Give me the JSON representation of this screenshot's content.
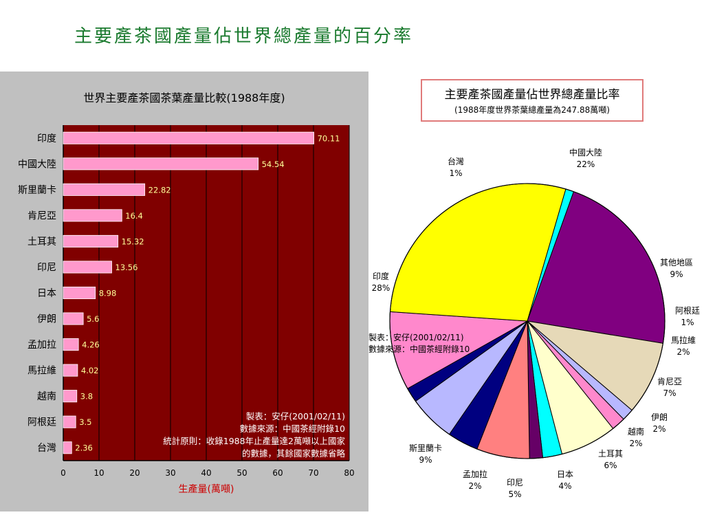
{
  "slide": {
    "title": "主要產茶國產量佔世界總產量的百分率"
  },
  "chart_data": [
    {
      "type": "bar",
      "orientation": "horizontal",
      "title": "世界主要產茶國茶葉產量比較(1988年度)",
      "xlabel": "生產量(萬噸)",
      "xlim": [
        0,
        80
      ],
      "xticks": [
        "0",
        "10",
        "20",
        "30",
        "40",
        "50",
        "60",
        "70",
        "80"
      ],
      "categories": [
        "印度",
        "中國大陸",
        "斯里蘭卡",
        "肯尼亞",
        "土耳其",
        "印尼",
        "日本",
        "伊朗",
        "孟加拉",
        "馬拉維",
        "越南",
        "阿根廷",
        "台灣"
      ],
      "values": [
        70.11,
        54.54,
        22.82,
        16.4,
        15.32,
        13.56,
        8.98,
        5.6,
        4.26,
        4.02,
        3.8,
        3.5,
        2.36
      ],
      "value_labels": [
        "70.11",
        "54.54",
        "22.82",
        "16.4",
        "15.32",
        "13.56",
        "8.98",
        "5.6",
        "4.26",
        "4.02",
        "3.8",
        "3.5",
        "2.36"
      ],
      "grid": "vertical",
      "colors": {
        "plot_bg": "#800000",
        "bar": "#ff99cc",
        "grid": "#000000",
        "value_label": "#ffff99",
        "xlabel": "#cc0000"
      },
      "annotation": [
        "製表：安仔(2001/02/11)",
        "數據來源：中國茶經附錄10",
        "統計原則：收錄1988年止產量達2萬噸以上國家",
        "的數據，其餘國家數據省略"
      ]
    },
    {
      "type": "pie",
      "title": "主要產茶國產量佔世界總產量比率",
      "subtitle": "(1988年度世界茶葉總產量為247.88萬噸)",
      "slices": [
        {
          "name": "中國大陸",
          "label": "22%",
          "value": 22.0,
          "color": "#800080"
        },
        {
          "name": "其他地區",
          "label": "9%",
          "value": 8.6,
          "color": "#e6d9b8"
        },
        {
          "name": "阿根廷",
          "label": "1%",
          "value": 1.41,
          "color": "#b8b8ff"
        },
        {
          "name": "馬拉維",
          "label": "2%",
          "value": 1.62,
          "color": "#ff88cc"
        },
        {
          "name": "肯尼亞",
          "label": "7%",
          "value": 6.62,
          "color": "#ffffcc"
        },
        {
          "name": "伊朗",
          "label": "2%",
          "value": 2.26,
          "color": "#00ffff"
        },
        {
          "name": "越南",
          "label": "2%",
          "value": 1.53,
          "color": "#660066"
        },
        {
          "name": "土耳其",
          "label": "6%",
          "value": 6.18,
          "color": "#ff8080"
        },
        {
          "name": "日本",
          "label": "4%",
          "value": 3.62,
          "color": "#000080"
        },
        {
          "name": "印尼",
          "label": "5%",
          "value": 5.47,
          "color": "#b8b8ff"
        },
        {
          "name": "孟加拉",
          "label": "2%",
          "value": 1.72,
          "color": "#000080"
        },
        {
          "name": "斯里蘭卡",
          "label": "9%",
          "value": 9.21,
          "color": "#ff88cc"
        },
        {
          "name": "印度",
          "label": "28%",
          "value": 28.28,
          "color": "#ffff00"
        },
        {
          "name": "台灣",
          "label": "1%",
          "value": 0.95,
          "color": "#00ffff"
        }
      ],
      "annotation": [
        "製表：安仔(2001/02/11)",
        "數據來源：中國茶經附錄10"
      ]
    }
  ]
}
